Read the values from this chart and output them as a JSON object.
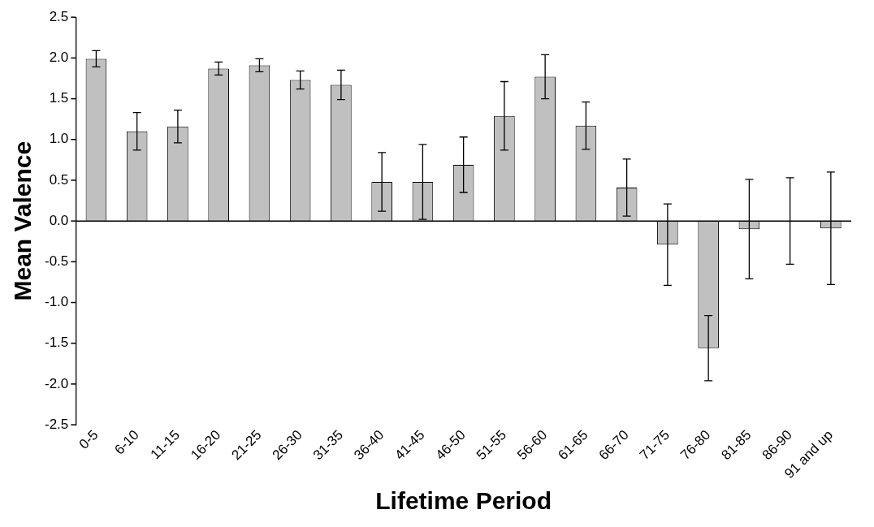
{
  "chart_data": {
    "type": "bar",
    "xlabel": "Lifetime Period",
    "ylabel": "Mean Valence",
    "categories": [
      "0-5",
      "6-10",
      "11-15",
      "16-20",
      "21-25",
      "26-30",
      "31-35",
      "36-40",
      "41-45",
      "46-50",
      "51-55",
      "56-60",
      "61-65",
      "66-70",
      "71-75",
      "76-80",
      "81-85",
      "86-90",
      "91 and up"
    ],
    "values": [
      1.99,
      1.1,
      1.16,
      1.87,
      1.91,
      1.73,
      1.67,
      0.48,
      0.48,
      0.69,
      1.29,
      1.77,
      1.17,
      0.41,
      -0.29,
      -1.56,
      -0.1,
      0.0,
      -0.09
    ],
    "errors": [
      0.1,
      0.23,
      0.2,
      0.08,
      0.08,
      0.11,
      0.18,
      0.36,
      0.46,
      0.34,
      0.42,
      0.27,
      0.29,
      0.35,
      0.5,
      0.4,
      0.61,
      0.53,
      0.69
    ],
    "color": "#c0c0c0",
    "ylim": [
      -2.5,
      2.5
    ],
    "yticks": [
      {
        "value": -2.5,
        "label": "-2.5"
      },
      {
        "value": -2,
        "label": "-2.0"
      },
      {
        "value": -1.5,
        "label": "-1.5"
      },
      {
        "value": -1,
        "label": "-1.0"
      },
      {
        "value": -0.5,
        "label": "-0.5"
      },
      {
        "value": 0,
        "label": "0.0"
      },
      {
        "value": 0.5,
        "label": "0.5"
      },
      {
        "value": 1,
        "label": "1.0"
      },
      {
        "value": 1.5,
        "label": "1.5"
      },
      {
        "value": 2,
        "label": "2.0"
      },
      {
        "value": 2.5,
        "label": "2.5"
      }
    ],
    "ref_lines": [
      {
        "axis": "y",
        "value": 0,
        "color": "#000000"
      }
    ],
    "grid": false,
    "legend": false
  }
}
